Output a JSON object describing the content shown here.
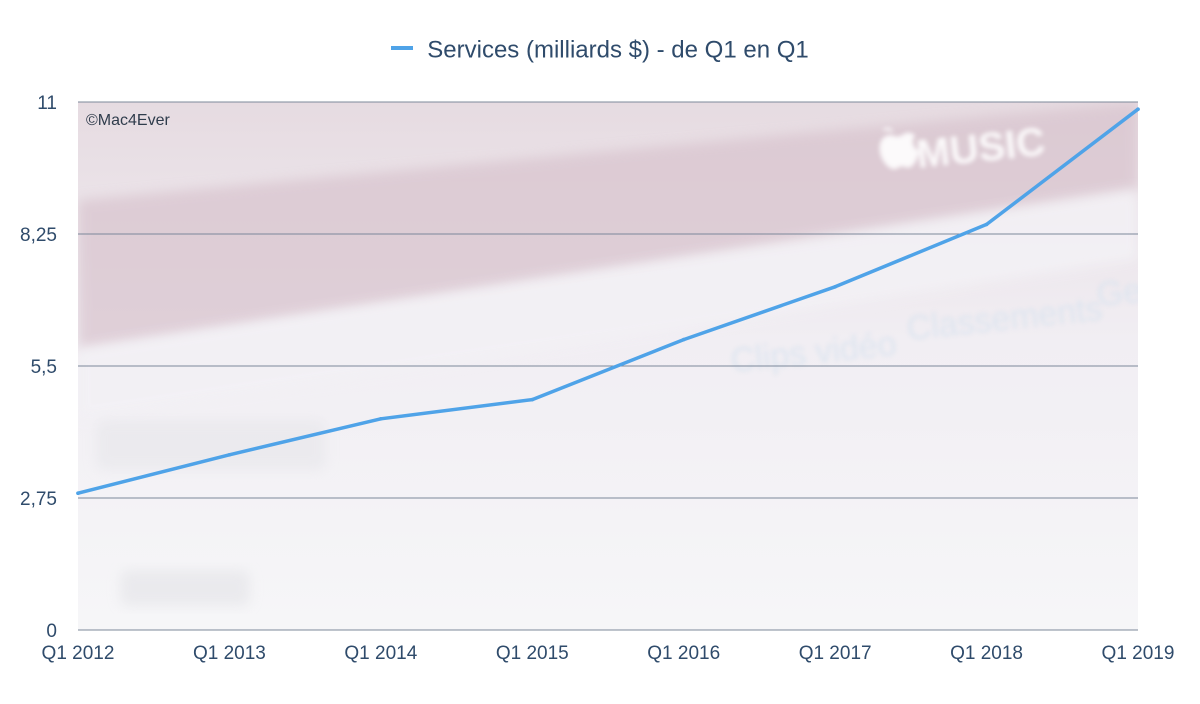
{
  "chart_data": {
    "type": "line",
    "title": "",
    "xlabel": "",
    "ylabel": "",
    "categories": [
      "Q1 2012",
      "Q1 2013",
      "Q1 2014",
      "Q1 2015",
      "Q1 2016",
      "Q1 2017",
      "Q1 2018",
      "Q1 2019"
    ],
    "series": [
      {
        "name": "Services (milliards $) - de Q1 en Q1",
        "color": "#4fa3e8",
        "values": [
          2.85,
          3.65,
          4.4,
          4.8,
          6.05,
          7.15,
          8.45,
          10.85
        ]
      }
    ],
    "ylim": [
      0,
      11
    ],
    "yticks": [
      0,
      2.75,
      5.5,
      8.25,
      11
    ],
    "ytick_labels": [
      "0",
      "2,75",
      "5,5",
      "8,25",
      "11"
    ],
    "grid": true,
    "legend_position": "top-center"
  },
  "credit": "©Mac4Ever",
  "background_texts": [
    "MUSIC",
    "Clips vidéo",
    "Classements",
    "Ge"
  ],
  "background_icon": "apple-logo-icon"
}
